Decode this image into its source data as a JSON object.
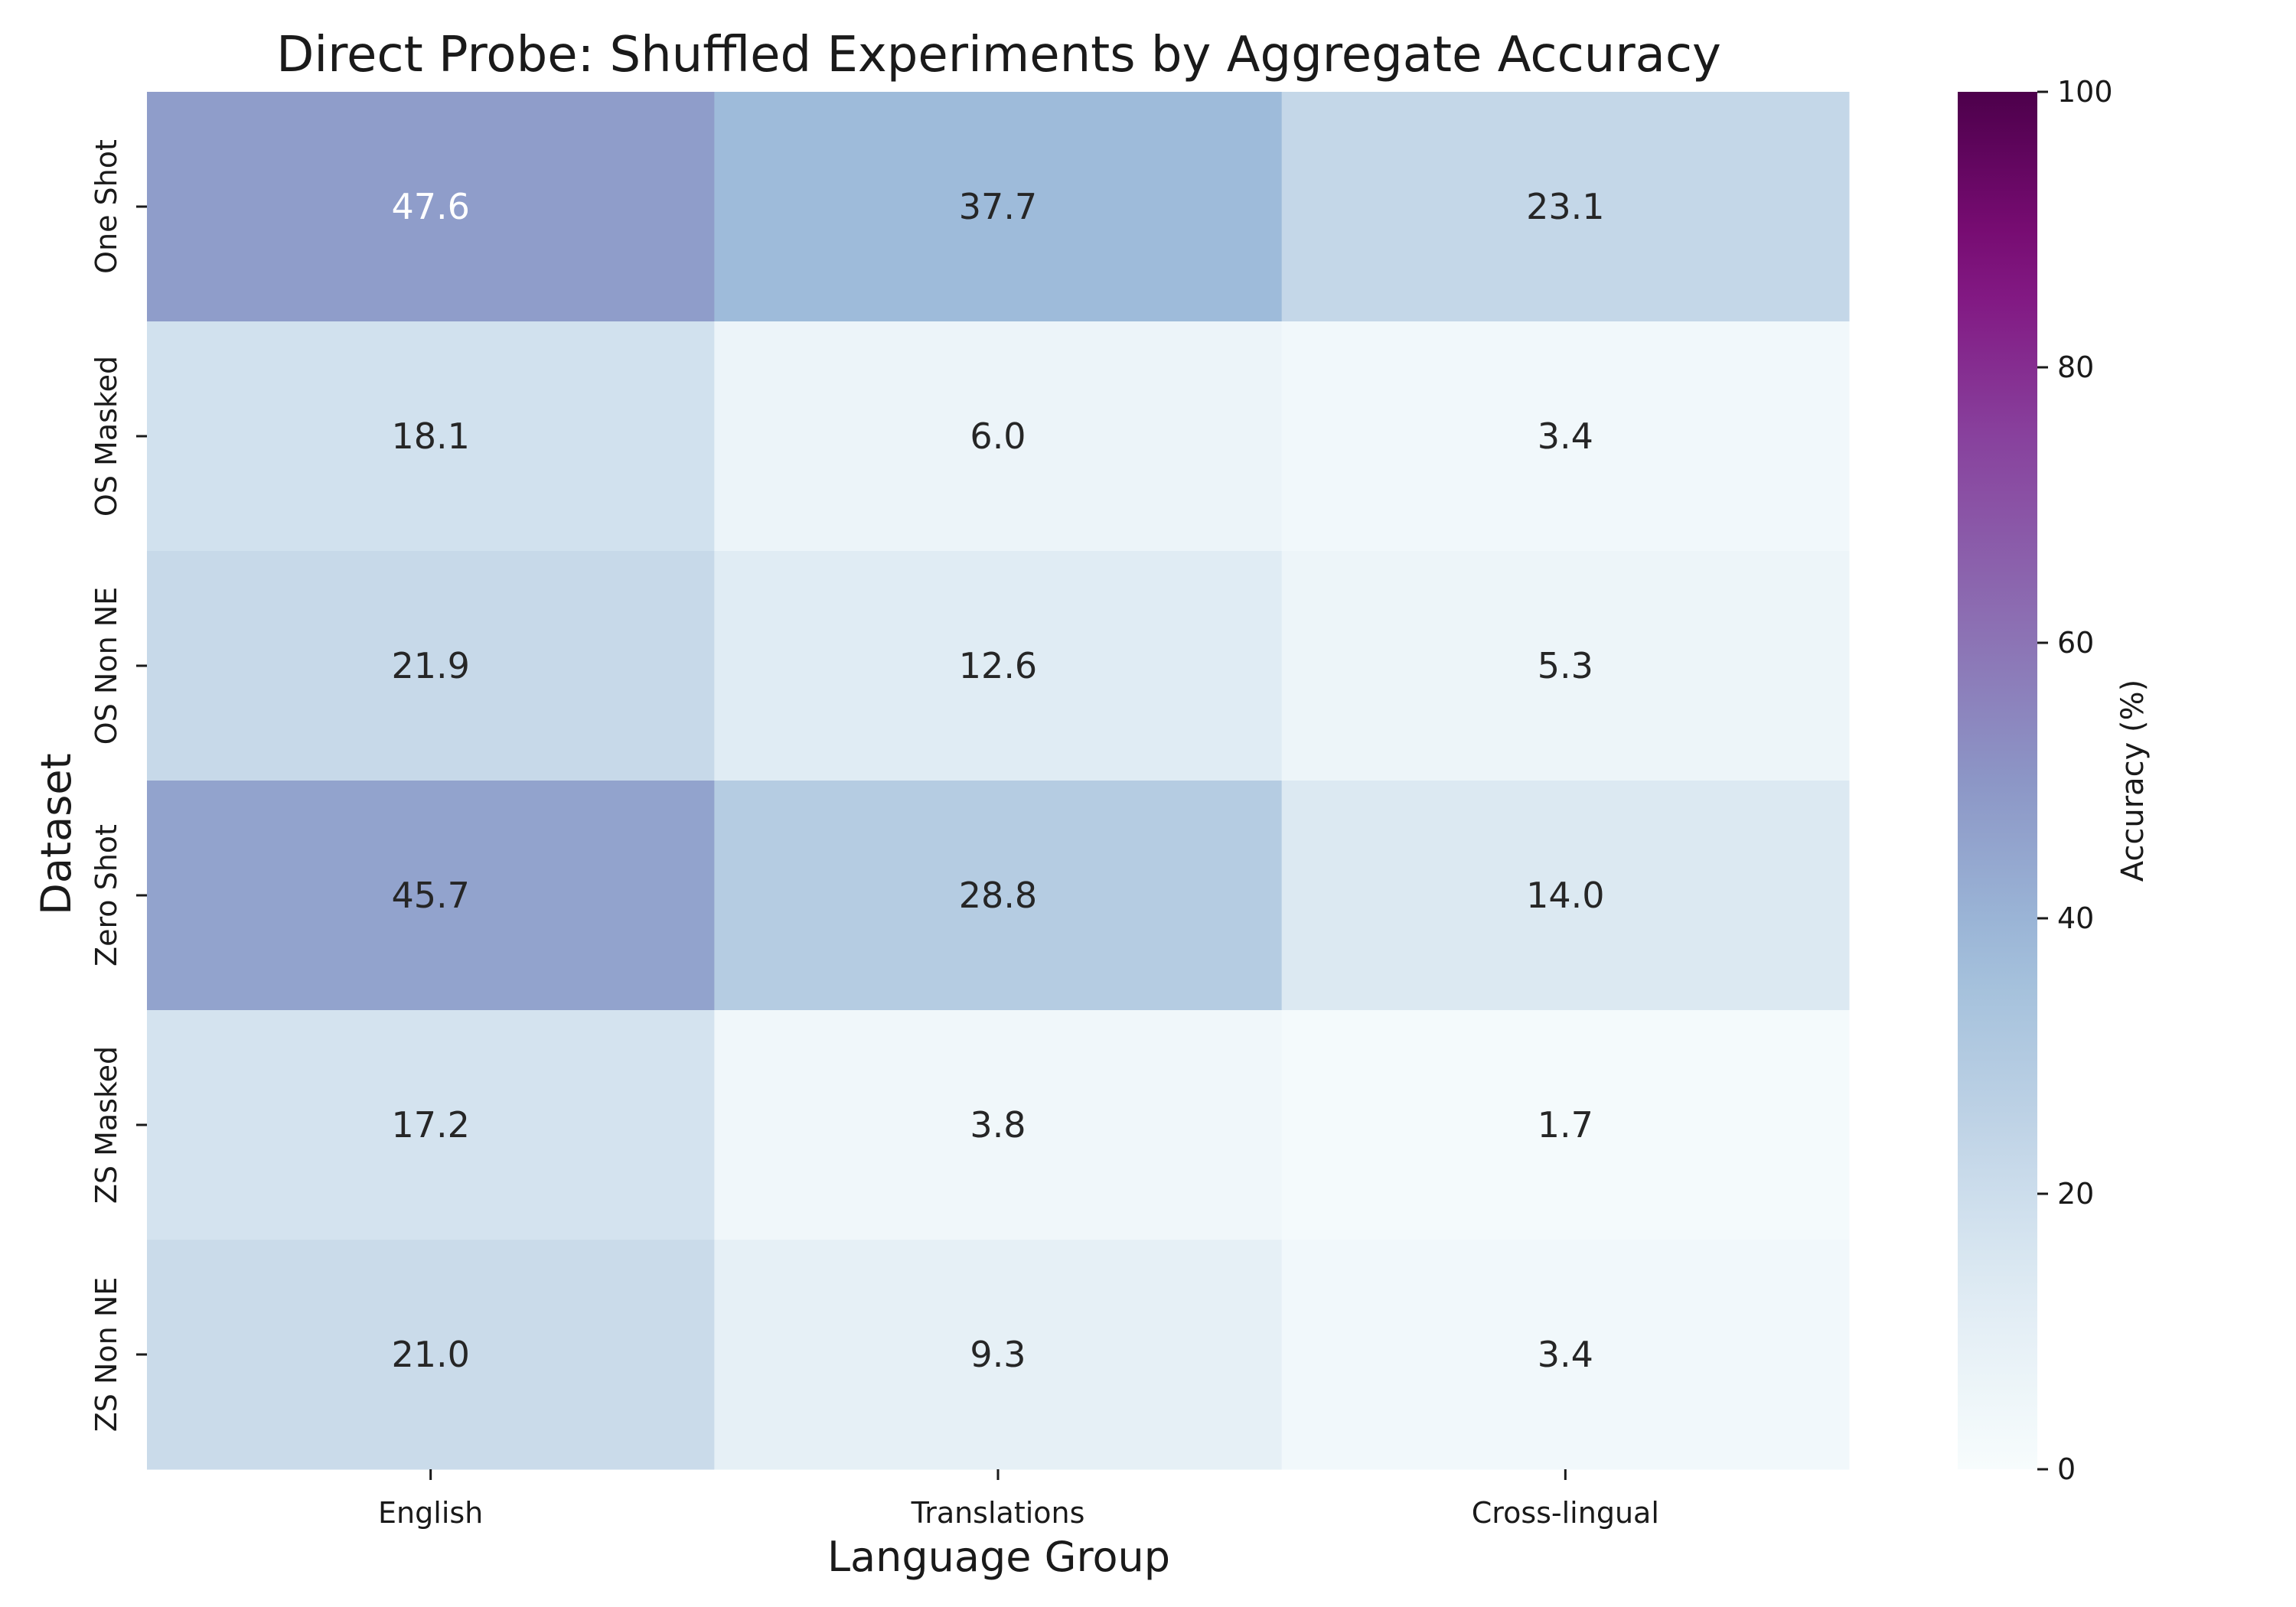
{
  "chart_data": {
    "type": "heatmap",
    "title": "Direct Probe: Shuffled Experiments by Aggregate Accuracy",
    "xlabel": "Language Group",
    "ylabel": "Dataset",
    "x_categories": [
      "English",
      "Translations",
      "Cross-lingual"
    ],
    "y_categories": [
      "One Shot",
      "OS Masked",
      "OS Non NE",
      "Zero Shot",
      "ZS Masked",
      "ZS Non NE"
    ],
    "values": [
      [
        47.6,
        37.7,
        23.1
      ],
      [
        18.1,
        6.0,
        3.4
      ],
      [
        21.9,
        12.6,
        5.3
      ],
      [
        45.7,
        28.8,
        14.0
      ],
      [
        17.2,
        3.8,
        1.7
      ],
      [
        21.0,
        9.3,
        3.4
      ]
    ],
    "value_format": "1 decimal",
    "colorbar": {
      "label": "Accuracy (%)",
      "range": [
        0,
        100
      ],
      "ticks": [
        0,
        20,
        40,
        60,
        80,
        100
      ],
      "colormap": "BuPu"
    }
  }
}
